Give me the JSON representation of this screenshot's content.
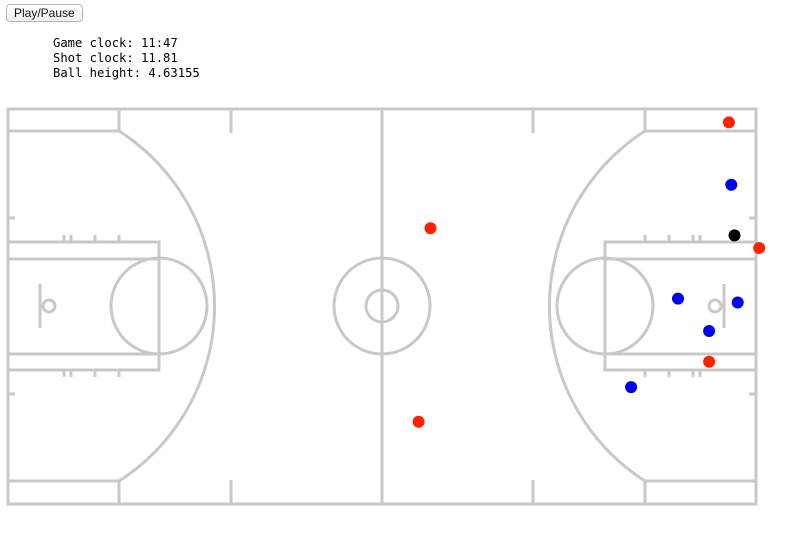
{
  "controls": {
    "play_pause_label": "Play/Pause"
  },
  "stats": {
    "game_clock": "Game clock: 11:47",
    "shot_clock": "Shot clock: 11.81",
    "ball_height": "Ball height: 4.63155"
  },
  "colors": {
    "team_a": "#ff2200",
    "team_b": "#0000ee",
    "ball": "#000000",
    "court_lines": "#c8c8c8"
  },
  "players": {
    "team_a": [
      {
        "x": 90.6,
        "y": 1.7
      },
      {
        "x": 53.1,
        "y": 15.1
      },
      {
        "x": 94.4,
        "y": 17.6
      },
      {
        "x": 88.1,
        "y": 32.0
      },
      {
        "x": 51.6,
        "y": 39.6
      }
    ],
    "team_b": [
      {
        "x": 90.9,
        "y": 9.6
      },
      {
        "x": 84.2,
        "y": 24.0
      },
      {
        "x": 91.7,
        "y": 24.5
      },
      {
        "x": 88.1,
        "y": 28.1
      },
      {
        "x": 78.3,
        "y": 35.2
      }
    ],
    "ball": {
      "x": 91.3,
      "y": 16.0
    }
  }
}
